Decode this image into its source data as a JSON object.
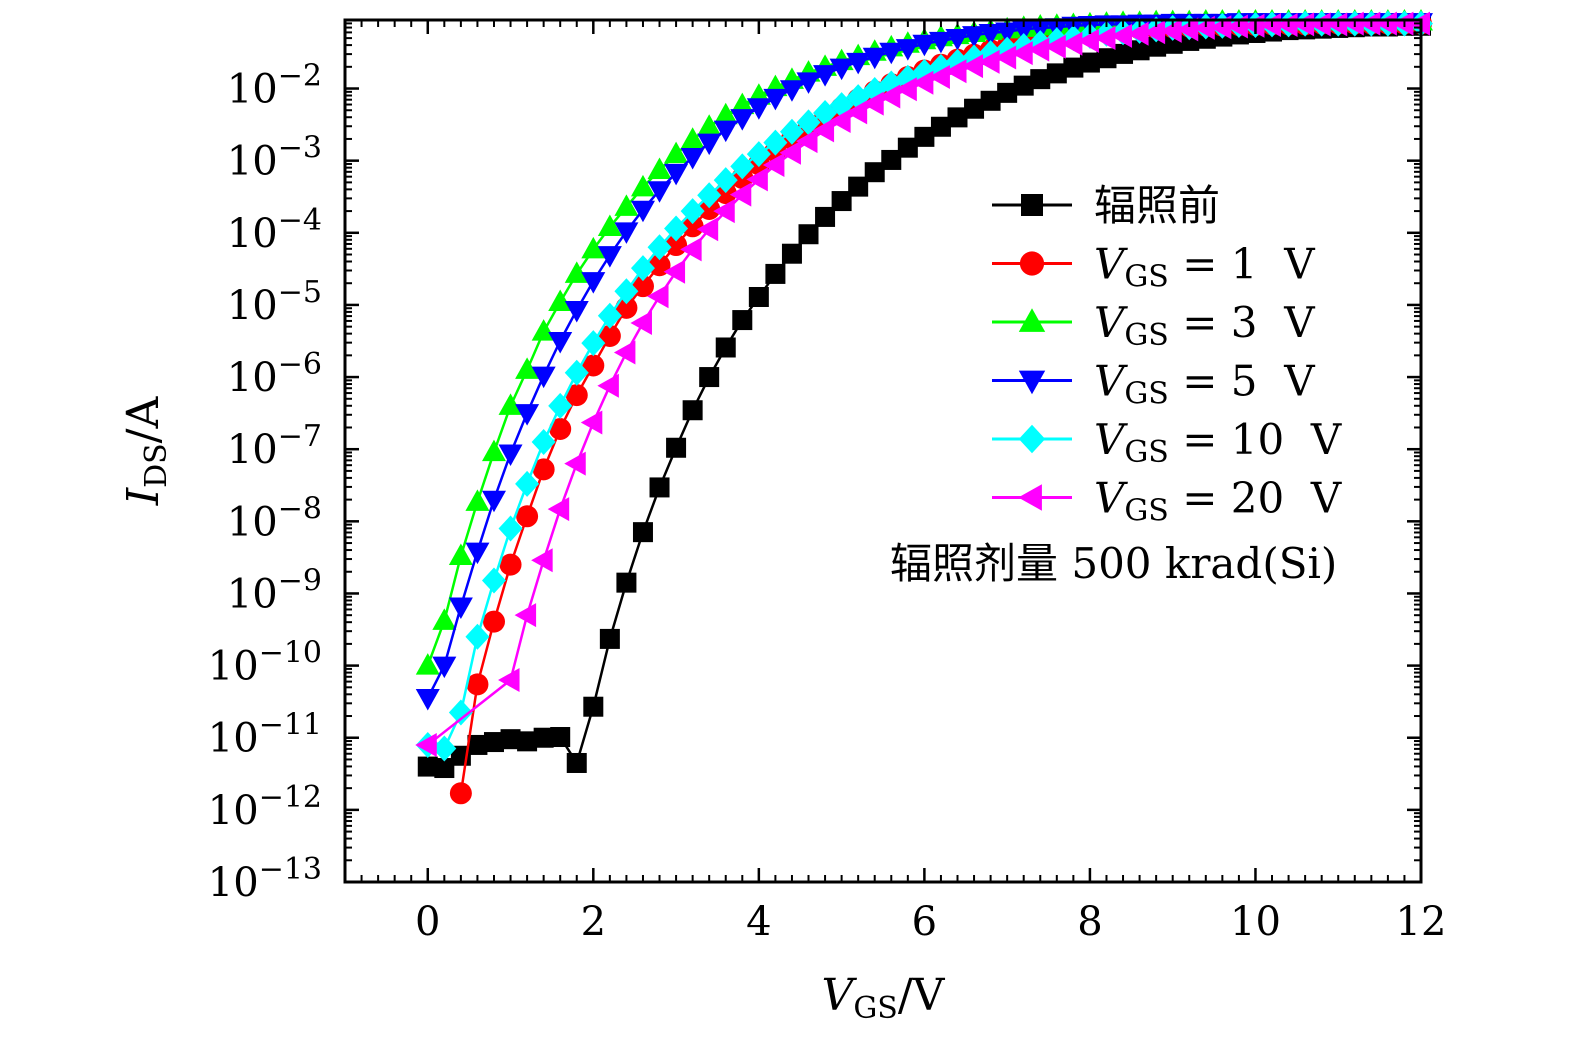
{
  "chart_data": {
    "type": "line",
    "title": "",
    "xlabel": "V_GS/V",
    "ylabel": "I_DS/A",
    "xlabel_parts": {
      "main": "V",
      "sub": "GS",
      "tail": "/V"
    },
    "ylabel_parts": {
      "main": "I",
      "sub": "DS",
      "tail": "/A"
    },
    "xlim": [
      -1,
      12
    ],
    "ylim_log10": [
      -13,
      -1.05
    ],
    "y_scale": "log",
    "grid": false,
    "x_ticks": [
      "0",
      "2",
      "4",
      "6",
      "8",
      "10",
      "12"
    ],
    "x_tick_values": [
      0,
      2,
      4,
      6,
      8,
      10,
      12
    ],
    "y_tick_exponents": [
      "−2",
      "−3",
      "−4",
      "−5",
      "−6",
      "−7",
      "−8",
      "−9",
      "−10",
      "−11",
      "−12",
      "−13"
    ],
    "y_tick_base": "10",
    "legend_placement": "right-middle",
    "annotation": "辐照剂量 500 krad(Si)",
    "series": [
      {
        "name": "辐照前",
        "legend_parts": {
          "text": "辐照前"
        },
        "color": "#000000",
        "marker": "square",
        "x": [
          0,
          0.2,
          0.4,
          0.6,
          0.8,
          1.0,
          1.2,
          1.4,
          1.6,
          1.8,
          2.0,
          2.2,
          2.4,
          2.6,
          2.8,
          3.0,
          3.2,
          3.4,
          3.6,
          3.8,
          4.0,
          4.2,
          4.4,
          4.6,
          4.8,
          5.0,
          5.2,
          5.4,
          5.6,
          5.8,
          6.0,
          6.2,
          6.4,
          6.6,
          6.8,
          7.0,
          7.2,
          7.4,
          7.6,
          7.8,
          8.0,
          8.2,
          8.4,
          8.6,
          8.8,
          9.0,
          9.2,
          9.4,
          9.6,
          9.8,
          10.0,
          10.2,
          10.4,
          10.6,
          10.8,
          11.0,
          11.2,
          11.4,
          11.6,
          11.8,
          12.0
        ],
        "log10_y": [
          -11.4,
          -11.42,
          -11.25,
          -11.1,
          -11.06,
          -11.02,
          -11.05,
          -11.0,
          -10.99,
          -11.35,
          -10.57,
          -9.63,
          -8.85,
          -8.15,
          -7.53,
          -6.98,
          -6.46,
          -6.0,
          -5.59,
          -5.21,
          -4.89,
          -4.57,
          -4.29,
          -4.02,
          -3.78,
          -3.56,
          -3.36,
          -3.16,
          -2.99,
          -2.82,
          -2.67,
          -2.53,
          -2.4,
          -2.28,
          -2.17,
          -2.06,
          -1.96,
          -1.87,
          -1.79,
          -1.71,
          -1.64,
          -1.58,
          -1.52,
          -1.47,
          -1.42,
          -1.38,
          -1.34,
          -1.31,
          -1.28,
          -1.25,
          -1.23,
          -1.21,
          -1.19,
          -1.18,
          -1.17,
          -1.16,
          -1.15,
          -1.14,
          -1.14,
          -1.13,
          -1.13
        ]
      },
      {
        "name": "V_GS = 1 V",
        "legend_parts": {
          "main": "V",
          "sub": "GS",
          "tail": " = 1  V"
        },
        "color": "#ff0000",
        "marker": "circle",
        "x": [
          0.4,
          0.6,
          0.8,
          1.0,
          1.2,
          1.4,
          1.6,
          1.8,
          2.0,
          2.2,
          2.4,
          2.6,
          2.8,
          3.0,
          3.2,
          3.4,
          3.6,
          3.8,
          4.0,
          4.2,
          4.4,
          4.6,
          4.8,
          5.0,
          5.2,
          5.4,
          5.6,
          5.8,
          6.0,
          6.2,
          6.4,
          6.6,
          6.8,
          7.0,
          7.2,
          7.4,
          7.6,
          7.8,
          8.0,
          8.2,
          8.4,
          8.6,
          8.8,
          9.0,
          9.2,
          9.4,
          9.6,
          9.8,
          10.0,
          10.2,
          10.4,
          10.6,
          10.8,
          11.0,
          11.2,
          11.4,
          11.6,
          11.8,
          12.0
        ],
        "log10_y": [
          -11.77,
          -10.26,
          -9.39,
          -8.6,
          -7.93,
          -7.28,
          -6.72,
          -6.25,
          -5.84,
          -5.43,
          -5.04,
          -4.74,
          -4.45,
          -4.17,
          -3.91,
          -3.67,
          -3.45,
          -3.24,
          -3.05,
          -2.87,
          -2.7,
          -2.55,
          -2.4,
          -2.27,
          -2.15,
          -2.04,
          -1.94,
          -1.84,
          -1.75,
          -1.67,
          -1.6,
          -1.53,
          -1.47,
          -1.42,
          -1.37,
          -1.33,
          -1.29,
          -1.26,
          -1.23,
          -1.21,
          -1.19,
          -1.17,
          -1.16,
          -1.15,
          -1.14,
          -1.13,
          -1.13,
          -1.12,
          -1.12,
          -1.11,
          -1.11,
          -1.11,
          -1.1,
          -1.1,
          -1.1,
          -1.1,
          -1.1,
          -1.1,
          -1.1
        ]
      },
      {
        "name": "V_GS = 3 V",
        "legend_parts": {
          "main": "V",
          "sub": "GS",
          "tail": " = 3  V"
        },
        "color": "#00ff00",
        "marker": "triangle-up",
        "x": [
          0,
          0.2,
          0.4,
          0.6,
          0.8,
          1.0,
          1.2,
          1.4,
          1.6,
          1.8,
          2.0,
          2.2,
          2.4,
          2.6,
          2.8,
          3.0,
          3.2,
          3.4,
          3.6,
          3.8,
          4.0,
          4.2,
          4.4,
          4.6,
          4.8,
          5.0,
          5.2,
          5.4,
          5.6,
          5.8,
          6.0,
          6.2,
          6.4,
          6.6,
          6.8,
          7.0,
          7.2,
          7.4,
          7.6,
          7.8,
          8.0,
          8.2,
          8.4,
          8.6,
          8.8,
          9.0,
          9.2,
          9.4,
          9.6,
          9.8,
          10.0,
          10.2,
          10.4,
          10.6,
          10.8,
          11.0,
          11.2,
          11.4,
          11.6,
          11.8,
          12.0
        ],
        "log10_y": [
          -10.0,
          -9.38,
          -8.48,
          -7.73,
          -7.04,
          -6.4,
          -5.9,
          -5.37,
          -4.96,
          -4.57,
          -4.23,
          -3.92,
          -3.64,
          -3.37,
          -3.13,
          -2.91,
          -2.71,
          -2.53,
          -2.37,
          -2.23,
          -2.1,
          -1.98,
          -1.88,
          -1.78,
          -1.7,
          -1.62,
          -1.55,
          -1.49,
          -1.43,
          -1.38,
          -1.33,
          -1.29,
          -1.26,
          -1.23,
          -1.2,
          -1.18,
          -1.16,
          -1.14,
          -1.13,
          -1.12,
          -1.11,
          -1.1,
          -1.09,
          -1.09,
          -1.08,
          -1.08,
          -1.08,
          -1.07,
          -1.07,
          -1.07,
          -1.07,
          -1.07,
          -1.07,
          -1.07,
          -1.07,
          -1.07,
          -1.07,
          -1.07,
          -1.07,
          -1.07,
          -1.07
        ]
      },
      {
        "name": "V_GS = 5 V",
        "legend_parts": {
          "main": "V",
          "sub": "GS",
          "tail": " = 5  V"
        },
        "color": "#0000ff",
        "marker": "triangle-down",
        "x": [
          0,
          0.2,
          0.4,
          0.6,
          0.8,
          1.0,
          1.2,
          1.4,
          1.6,
          1.8,
          2.0,
          2.2,
          2.4,
          2.6,
          2.8,
          3.0,
          3.2,
          3.4,
          3.6,
          3.8,
          4.0,
          4.2,
          4.4,
          4.6,
          4.8,
          5.0,
          5.2,
          5.4,
          5.6,
          5.8,
          6.0,
          6.2,
          6.4,
          6.6,
          6.8,
          7.0,
          7.2,
          7.4,
          7.6,
          7.8,
          8.0,
          8.2,
          8.4,
          8.6,
          8.8,
          9.0,
          9.2,
          9.4,
          9.6,
          9.8,
          10.0,
          10.2,
          10.4,
          10.6,
          10.8,
          11.0,
          11.2,
          11.4,
          11.6,
          11.8,
          12.0
        ],
        "log10_y": [
          -10.45,
          -10.0,
          -9.18,
          -8.42,
          -7.7,
          -7.06,
          -6.5,
          -5.98,
          -5.5,
          -5.07,
          -4.67,
          -4.31,
          -3.98,
          -3.68,
          -3.41,
          -3.17,
          -2.95,
          -2.75,
          -2.57,
          -2.41,
          -2.26,
          -2.13,
          -2.01,
          -1.9,
          -1.8,
          -1.71,
          -1.63,
          -1.56,
          -1.49,
          -1.44,
          -1.38,
          -1.34,
          -1.3,
          -1.26,
          -1.23,
          -1.21,
          -1.18,
          -1.16,
          -1.15,
          -1.13,
          -1.12,
          -1.11,
          -1.11,
          -1.1,
          -1.1,
          -1.09,
          -1.09,
          -1.09,
          -1.09,
          -1.08,
          -1.08,
          -1.08,
          -1.08,
          -1.08,
          -1.08,
          -1.08,
          -1.08,
          -1.08,
          -1.08,
          -1.08,
          -1.08
        ]
      },
      {
        "name": "V_GS = 10 V",
        "legend_parts": {
          "main": "V",
          "sub": "GS",
          "tail": " = 10  V"
        },
        "color": "#00ffff",
        "marker": "diamond",
        "x": [
          0,
          0.2,
          0.4,
          0.6,
          0.8,
          1.0,
          1.2,
          1.4,
          1.6,
          1.8,
          2.0,
          2.2,
          2.4,
          2.6,
          2.8,
          3.0,
          3.2,
          3.4,
          3.6,
          3.8,
          4.0,
          4.2,
          4.4,
          4.6,
          4.8,
          5.0,
          5.2,
          5.4,
          5.6,
          5.8,
          6.0,
          6.2,
          6.4,
          6.6,
          6.8,
          7.0,
          7.2,
          7.4,
          7.6,
          7.8,
          8.0,
          8.2,
          8.4,
          8.6,
          8.8,
          9.0,
          9.2,
          9.4,
          9.6,
          9.8,
          10.0,
          10.2,
          10.4,
          10.6,
          10.8,
          11.0,
          11.2,
          11.4,
          11.6,
          11.8,
          12.0
        ],
        "log10_y": [
          -11.1,
          -11.15,
          -10.65,
          -9.6,
          -8.82,
          -8.1,
          -7.48,
          -6.9,
          -6.4,
          -5.94,
          -5.53,
          -5.15,
          -4.81,
          -4.49,
          -4.2,
          -3.94,
          -3.7,
          -3.48,
          -3.27,
          -3.08,
          -2.91,
          -2.75,
          -2.6,
          -2.47,
          -2.34,
          -2.23,
          -2.12,
          -2.02,
          -1.93,
          -1.85,
          -1.77,
          -1.7,
          -1.63,
          -1.57,
          -1.51,
          -1.46,
          -1.41,
          -1.37,
          -1.33,
          -1.3,
          -1.27,
          -1.24,
          -1.22,
          -1.2,
          -1.18,
          -1.16,
          -1.15,
          -1.14,
          -1.13,
          -1.12,
          -1.12,
          -1.11,
          -1.11,
          -1.1,
          -1.1,
          -1.1,
          -1.1,
          -1.1,
          -1.1,
          -1.1,
          -1.1
        ]
      },
      {
        "name": "V_GS = 20 V",
        "legend_parts": {
          "main": "V",
          "sub": "GS",
          "tail": " = 20  V"
        },
        "color": "#ff00ff",
        "marker": "triangle-left",
        "x": [
          0,
          1.0,
          1.2,
          1.4,
          1.6,
          1.8,
          2.0,
          2.2,
          2.4,
          2.6,
          2.8,
          3.0,
          3.2,
          3.4,
          3.6,
          3.8,
          4.0,
          4.2,
          4.4,
          4.6,
          4.8,
          5.0,
          5.2,
          5.4,
          5.6,
          5.8,
          6.0,
          6.2,
          6.4,
          6.6,
          6.8,
          7.0,
          7.2,
          7.4,
          7.6,
          7.8,
          8.0,
          8.2,
          8.4,
          8.6,
          8.8,
          9.0,
          9.2,
          9.4,
          9.6,
          9.8,
          10.0,
          10.2,
          10.4,
          10.6,
          10.8,
          11.0,
          11.2,
          11.4,
          11.6,
          11.8,
          12.0
        ],
        "log10_y": [
          -11.1,
          -10.2,
          -9.3,
          -8.54,
          -7.83,
          -7.2,
          -6.63,
          -6.12,
          -5.66,
          -5.25,
          -4.88,
          -4.54,
          -4.23,
          -3.95,
          -3.7,
          -3.47,
          -3.26,
          -3.06,
          -2.89,
          -2.73,
          -2.58,
          -2.45,
          -2.33,
          -2.21,
          -2.11,
          -2.01,
          -1.92,
          -1.84,
          -1.76,
          -1.69,
          -1.63,
          -1.57,
          -1.51,
          -1.46,
          -1.42,
          -1.38,
          -1.34,
          -1.3,
          -1.27,
          -1.24,
          -1.22,
          -1.2,
          -1.18,
          -1.16,
          -1.15,
          -1.14,
          -1.13,
          -1.12,
          -1.12,
          -1.11,
          -1.11,
          -1.11,
          -1.1,
          -1.1,
          -1.1,
          -1.1,
          -1.1
        ]
      }
    ]
  }
}
